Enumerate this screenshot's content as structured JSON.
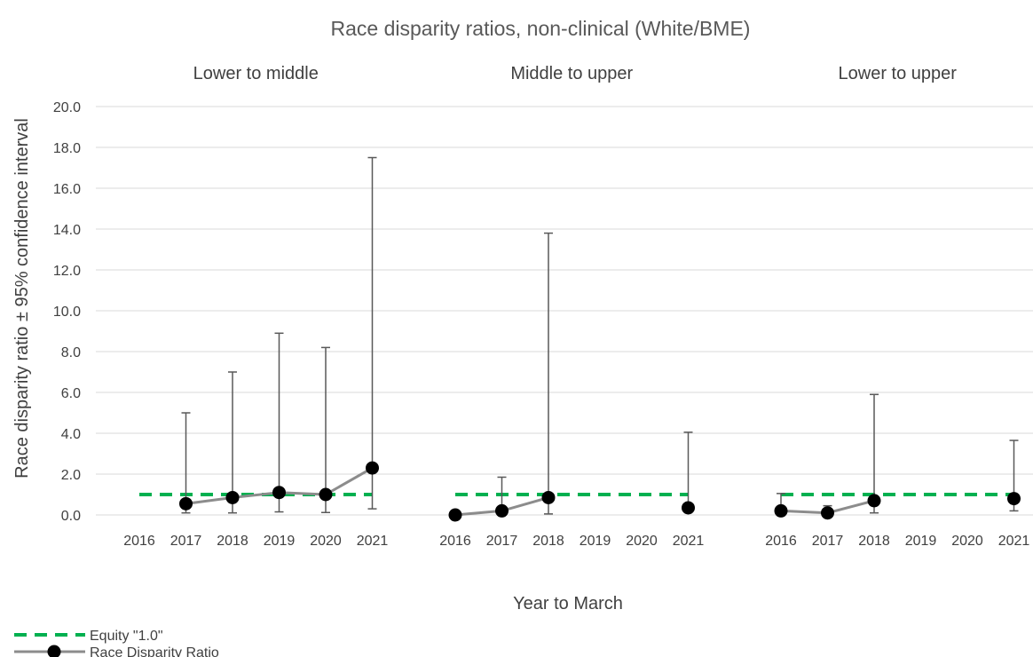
{
  "chart_data": {
    "type": "line",
    "title": "Race disparity ratios, non-clinical (White/BME)",
    "xlabel": "Year to March",
    "ylabel": "Race disparity ratio ± 95% confidence interval",
    "ylim": [
      0,
      20
    ],
    "yticks": [
      "0.0",
      "2.0",
      "4.0",
      "6.0",
      "8.0",
      "10.0",
      "12.0",
      "14.0",
      "16.0",
      "18.0",
      "20.0"
    ],
    "categories": [
      "2016",
      "2017",
      "2018",
      "2019",
      "2020",
      "2021"
    ],
    "grid": true,
    "legend_position": "bottom-left",
    "colors": {
      "equity": "#00b050",
      "ratio_line": "#8c8c8c",
      "ratio_marker": "#000000",
      "error_bar": "#595959"
    },
    "panels": [
      {
        "title": "Lower to middle",
        "equity": [
          1.0,
          1.0,
          1.0,
          1.0,
          1.0,
          1.0
        ],
        "ratio": [
          null,
          0.55,
          0.85,
          1.1,
          1.0,
          2.3
        ],
        "ci_low": [
          null,
          0.1,
          0.1,
          0.15,
          0.12,
          0.3
        ],
        "ci_high": [
          null,
          5.0,
          7.0,
          8.9,
          8.2,
          17.5
        ]
      },
      {
        "title": "Middle to upper",
        "equity": [
          1.0,
          1.0,
          1.0,
          1.0,
          1.0,
          1.0
        ],
        "ratio": [
          0.0,
          0.2,
          0.85,
          null,
          null,
          0.35
        ],
        "ci_low": [
          0.0,
          0.05,
          0.05,
          null,
          null,
          0.25
        ],
        "ci_high": [
          0.0,
          1.85,
          13.8,
          null,
          null,
          4.05
        ]
      },
      {
        "title": "Lower to upper",
        "equity": [
          1.0,
          1.0,
          1.0,
          1.0,
          1.0,
          1.0
        ],
        "ratio": [
          0.2,
          0.1,
          0.7,
          null,
          null,
          0.8
        ],
        "ci_low": [
          0.1,
          0.05,
          0.1,
          null,
          null,
          0.2
        ],
        "ci_high": [
          1.05,
          0.45,
          5.9,
          null,
          null,
          3.65
        ]
      }
    ],
    "legend": [
      {
        "label": "Equity \"1.0\"",
        "icon": "green-dashed-line"
      },
      {
        "label": "Race Disparity Ratio",
        "icon": "gray-line-black-circle"
      }
    ]
  }
}
